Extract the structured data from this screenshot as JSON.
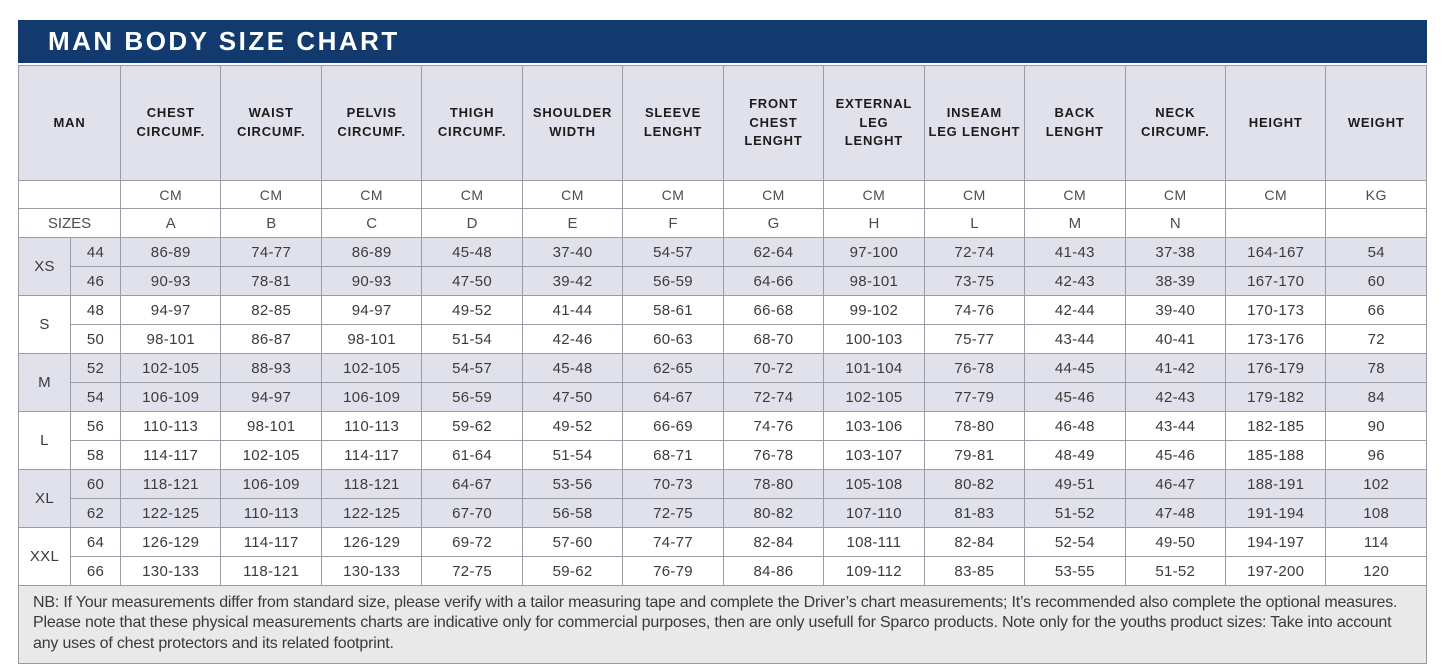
{
  "title": "MAN BODY SIZE CHART",
  "colors": {
    "header_navy": "#123a6f",
    "shaded_row": "#e1e1eb",
    "footnote_bg": "#e9e9e9"
  },
  "table": {
    "corner_header": "MAN",
    "sizes_row_label": "SIZES",
    "columns": [
      {
        "label": "CHEST\nCIRCUMF.",
        "unit": "CM",
        "letter": "A"
      },
      {
        "label": "WAIST\nCIRCUMF.",
        "unit": "CM",
        "letter": "B"
      },
      {
        "label": "PELVIS\nCIRCUMF.",
        "unit": "CM",
        "letter": "C"
      },
      {
        "label": "THIGH\nCIRCUMF.",
        "unit": "CM",
        "letter": "D"
      },
      {
        "label": "SHOULDER\nWIDTH",
        "unit": "CM",
        "letter": "E"
      },
      {
        "label": "SLEEVE\nLENGHT",
        "unit": "CM",
        "letter": "F"
      },
      {
        "label": "FRONT\nCHEST\nLENGHT",
        "unit": "CM",
        "letter": "G"
      },
      {
        "label": "EXTERNAL\nLEG\nLENGHT",
        "unit": "CM",
        "letter": "H"
      },
      {
        "label": "INSEAM\nLEG LENGHT",
        "unit": "CM",
        "letter": "L"
      },
      {
        "label": "BACK\nLENGHT",
        "unit": "CM",
        "letter": "M"
      },
      {
        "label": "NECK\nCIRCUMF.",
        "unit": "CM",
        "letter": "N"
      },
      {
        "label": "HEIGHT",
        "unit": "CM",
        "letter": ""
      },
      {
        "label": "WEIGHT",
        "unit": "KG",
        "letter": ""
      }
    ],
    "groups": [
      {
        "size": "XS",
        "shaded": true,
        "rows": [
          {
            "num": "44",
            "values": [
              "86-89",
              "74-77",
              "86-89",
              "45-48",
              "37-40",
              "54-57",
              "62-64",
              "97-100",
              "72-74",
              "41-43",
              "37-38",
              "164-167",
              "54"
            ]
          },
          {
            "num": "46",
            "values": [
              "90-93",
              "78-81",
              "90-93",
              "47-50",
              "39-42",
              "56-59",
              "64-66",
              "98-101",
              "73-75",
              "42-43",
              "38-39",
              "167-170",
              "60"
            ]
          }
        ]
      },
      {
        "size": "S",
        "shaded": false,
        "rows": [
          {
            "num": "48",
            "values": [
              "94-97",
              "82-85",
              "94-97",
              "49-52",
              "41-44",
              "58-61",
              "66-68",
              "99-102",
              "74-76",
              "42-44",
              "39-40",
              "170-173",
              "66"
            ]
          },
          {
            "num": "50",
            "values": [
              "98-101",
              "86-87",
              "98-101",
              "51-54",
              "42-46",
              "60-63",
              "68-70",
              "100-103",
              "75-77",
              "43-44",
              "40-41",
              "173-176",
              "72"
            ]
          }
        ]
      },
      {
        "size": "M",
        "shaded": true,
        "rows": [
          {
            "num": "52",
            "values": [
              "102-105",
              "88-93",
              "102-105",
              "54-57",
              "45-48",
              "62-65",
              "70-72",
              "101-104",
              "76-78",
              "44-45",
              "41-42",
              "176-179",
              "78"
            ]
          },
          {
            "num": "54",
            "values": [
              "106-109",
              "94-97",
              "106-109",
              "56-59",
              "47-50",
              "64-67",
              "72-74",
              "102-105",
              "77-79",
              "45-46",
              "42-43",
              "179-182",
              "84"
            ]
          }
        ]
      },
      {
        "size": "L",
        "shaded": false,
        "rows": [
          {
            "num": "56",
            "values": [
              "110-113",
              "98-101",
              "110-113",
              "59-62",
              "49-52",
              "66-69",
              "74-76",
              "103-106",
              "78-80",
              "46-48",
              "43-44",
              "182-185",
              "90"
            ]
          },
          {
            "num": "58",
            "values": [
              "114-117",
              "102-105",
              "114-117",
              "61-64",
              "51-54",
              "68-71",
              "76-78",
              "103-107",
              "79-81",
              "48-49",
              "45-46",
              "185-188",
              "96"
            ]
          }
        ]
      },
      {
        "size": "XL",
        "shaded": true,
        "rows": [
          {
            "num": "60",
            "values": [
              "118-121",
              "106-109",
              "118-121",
              "64-67",
              "53-56",
              "70-73",
              "78-80",
              "105-108",
              "80-82",
              "49-51",
              "46-47",
              "188-191",
              "102"
            ]
          },
          {
            "num": "62",
            "values": [
              "122-125",
              "110-113",
              "122-125",
              "67-70",
              "56-58",
              "72-75",
              "80-82",
              "107-110",
              "81-83",
              "51-52",
              "47-48",
              "191-194",
              "108"
            ]
          }
        ]
      },
      {
        "size": "XXL",
        "shaded": false,
        "rows": [
          {
            "num": "64",
            "values": [
              "126-129",
              "114-117",
              "126-129",
              "69-72",
              "57-60",
              "74-77",
              "82-84",
              "108-111",
              "82-84",
              "52-54",
              "49-50",
              "194-197",
              "114"
            ]
          },
          {
            "num": "66",
            "values": [
              "130-133",
              "118-121",
              "130-133",
              "72-75",
              "59-62",
              "76-79",
              "84-86",
              "109-112",
              "83-85",
              "53-55",
              "51-52",
              "197-200",
              "120"
            ]
          }
        ]
      }
    ]
  },
  "footnote": "NB: If Your measurements differ from standard size, please verify with a tailor measuring tape and complete the Driver’s chart measurements; It’s recommended also complete the optional measures. Please note that these physical measurements charts are indicative only for commercial purposes, then are only usefull for Sparco products. Note only for the youths product sizes: Take into account any uses of chest protectors and its related footprint."
}
